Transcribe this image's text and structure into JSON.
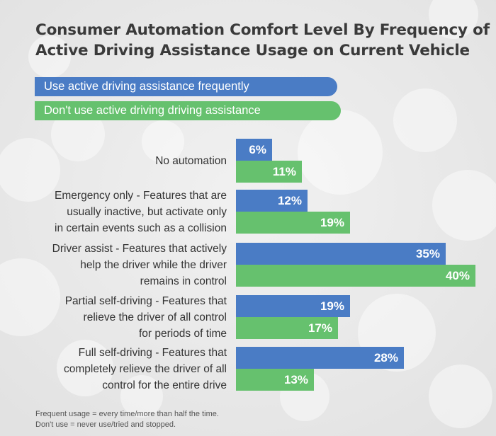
{
  "colors": {
    "frequent": "#4a7cc5",
    "nonuser": "#66c16e",
    "text": "#333333",
    "title": "#3a3a3a",
    "background": "#ececec"
  },
  "title_lines": [
    "Consumer Automation Comfort Level By Frequency of",
    "Active Driving Assistance Usage on Current Vehicle"
  ],
  "legend": [
    "Use active driving assistance frequently",
    "Don't use active driving driving assistance"
  ],
  "footnotes": [
    "Frequent usage = every time/more than half the time.",
    "Don't use = never use/tried and stopped."
  ],
  "chart_data": {
    "type": "bar",
    "orientation": "horizontal",
    "unit": "%",
    "categories": [
      [
        "No automation"
      ],
      [
        "Emergency only - Features that are",
        "usually inactive, but activate only",
        "in certain events such as a collision"
      ],
      [
        "Driver assist - Features that actively",
        "help the driver while the driver",
        "remains in control"
      ],
      [
        "Partial self-driving - Features that",
        "relieve the driver of all control",
        "for periods of time"
      ],
      [
        "Full self-driving - Features that",
        "completely relieve the driver of all",
        "control for the entire drive"
      ]
    ],
    "series": [
      {
        "name": "Use active driving assistance frequently",
        "values": [
          6,
          12,
          35,
          19,
          28
        ],
        "labels": [
          "6%",
          "12%",
          "35%",
          "19%",
          "28%"
        ]
      },
      {
        "name": "Don't use active driving driving assistance",
        "values": [
          11,
          19,
          40,
          17,
          13
        ],
        "labels": [
          "11%",
          "19%",
          "40%",
          "17%",
          "13%"
        ]
      }
    ],
    "xlim": [
      0,
      40
    ],
    "grid": false,
    "legend_position": "top-left"
  }
}
